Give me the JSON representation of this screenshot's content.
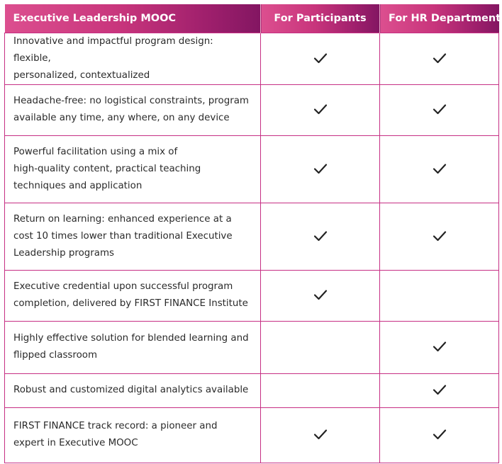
{
  "header": {
    "title": "Executive Leadership MOOC",
    "col_participants": "For Participants",
    "col_hr": "For HR Departments"
  },
  "colors": {
    "header_gradient_start": "#dc4f8f",
    "header_gradient_end": "#831662",
    "border": "#c62f84"
  },
  "check_icon": "checkmark-icon",
  "rows": [
    {
      "line1": "Innovative and impactful program design: flexible,",
      "line2": "personalized, contextualized",
      "line3": "",
      "participants": true,
      "hr": true
    },
    {
      "line1": "Headache-free: no logistical constraints, program",
      "line2": "available any time, any where, on any device",
      "line3": "",
      "participants": true,
      "hr": true
    },
    {
      "line1": "Powerful facilitation using a mix of",
      "line2": "high-quality content, practical teaching",
      "line3": "techniques and application",
      "participants": true,
      "hr": true
    },
    {
      "line1": "Return on learning: enhanced experience at a",
      "line2": "cost 10 times lower than traditional Executive",
      "line3": "Leadership programs",
      "participants": true,
      "hr": true
    },
    {
      "line1": "Executive credential upon successful program",
      "line2": "completion, delivered by FIRST FINANCE Institute",
      "line3": "",
      "participants": true,
      "hr": false
    },
    {
      "line1": "Highly effective solution for blended learning and",
      "line2": "flipped classroom",
      "line3": "",
      "participants": false,
      "hr": true
    },
    {
      "line1": "Robust and customized digital analytics available",
      "line2": "",
      "line3": "",
      "participants": false,
      "hr": true
    },
    {
      "line1": "FIRST FINANCE track record: a pioneer and",
      "line2": "expert in Executive MOOC",
      "line3": "",
      "participants": true,
      "hr": true
    }
  ]
}
